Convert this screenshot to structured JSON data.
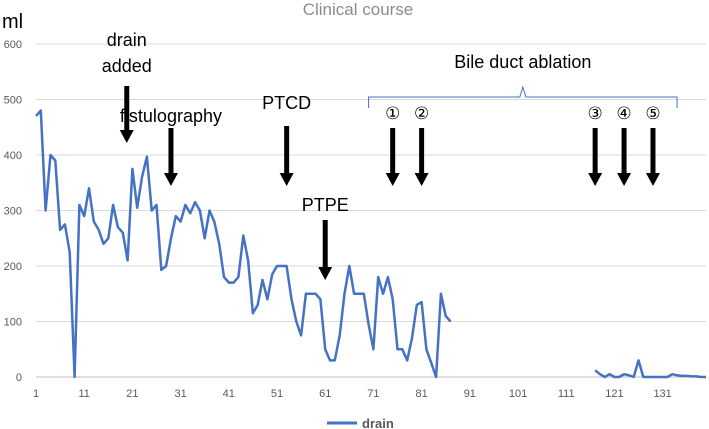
{
  "chart_data": {
    "type": "line",
    "title": "Clinical course",
    "ylabel": "ml",
    "xlabel": "",
    "ylim": [
      0,
      600
    ],
    "xlim": [
      1,
      140
    ],
    "y_ticks": [
      0,
      100,
      200,
      300,
      400,
      500,
      600
    ],
    "x_ticks": [
      1,
      11,
      21,
      31,
      41,
      51,
      61,
      71,
      81,
      91,
      101,
      111,
      121,
      131
    ],
    "legend": "bottom-center",
    "series": [
      {
        "name": "drain",
        "color": "#4472c4",
        "segments": [
          {
            "x": [
              1,
              2,
              3,
              4,
              5,
              6,
              7,
              8,
              9,
              10,
              11,
              12,
              13,
              14,
              15,
              16,
              17,
              18,
              19,
              20,
              21,
              22,
              23,
              24,
              25,
              26,
              27,
              28,
              29,
              30,
              31,
              32,
              33,
              34,
              35,
              36,
              37,
              38,
              39,
              40,
              41,
              42,
              43,
              44,
              45,
              46,
              47,
              48,
              49,
              50,
              51,
              52,
              53,
              54,
              55,
              56,
              57,
              58,
              59,
              60,
              61,
              62,
              63,
              64,
              65,
              66,
              67,
              68,
              69,
              70,
              71,
              72,
              73,
              74,
              75,
              76,
              77,
              78,
              79,
              80,
              81,
              82,
              83,
              84,
              85,
              86,
              87
            ],
            "y": [
              470,
              480,
              300,
              400,
              390,
              265,
              275,
              225,
              0,
              310,
              290,
              340,
              280,
              265,
              240,
              250,
              310,
              270,
              260,
              210,
              375,
              305,
              360,
              397,
              300,
              310,
              193,
              200,
              250,
              290,
              280,
              310,
              295,
              315,
              300,
              250,
              300,
              280,
              240,
              180,
              170,
              170,
              180,
              255,
              210,
              115,
              130,
              175,
              140,
              185,
              200,
              200,
              200,
              140,
              100,
              75,
              150,
              150,
              150,
              140,
              50,
              30,
              30,
              75,
              150,
              200,
              150,
              150,
              150,
              95,
              50,
              180,
              150,
              180,
              140,
              50,
              50,
              30,
              70,
              130,
              135,
              50,
              25,
              0,
              150,
              110,
              100
            ]
          },
          {
            "x": [
              117,
              118,
              119,
              120,
              121,
              122,
              123,
              124,
              125,
              126,
              127,
              128,
              129,
              130,
              131,
              132,
              133,
              134,
              135,
              136,
              137,
              138,
              139,
              140
            ],
            "y": [
              12,
              5,
              0,
              5,
              0,
              0,
              5,
              3,
              0,
              30,
              0,
              0,
              0,
              0,
              0,
              0,
              5,
              3,
              2,
              2,
              1,
              1,
              0,
              0
            ]
          }
        ]
      }
    ],
    "annotations": [
      {
        "lines": [
          "drain",
          "added"
        ],
        "x": 19
      },
      {
        "lines": [
          "fistulography"
        ],
        "x": 29
      },
      {
        "lines": [
          "PTCD"
        ],
        "x": 53
      },
      {
        "lines": [
          "PTPE"
        ],
        "x": 61
      },
      {
        "lines": [
          "①"
        ],
        "x": 75
      },
      {
        "lines": [
          "②"
        ],
        "x": 81
      },
      {
        "lines": [
          "③"
        ],
        "x": 117
      },
      {
        "lines": [
          "④"
        ],
        "x": 123
      },
      {
        "lines": [
          "⑤"
        ],
        "x": 129
      }
    ],
    "bracket": {
      "label": "Bile duct ablation",
      "x_start": 70,
      "x_end": 134
    }
  }
}
